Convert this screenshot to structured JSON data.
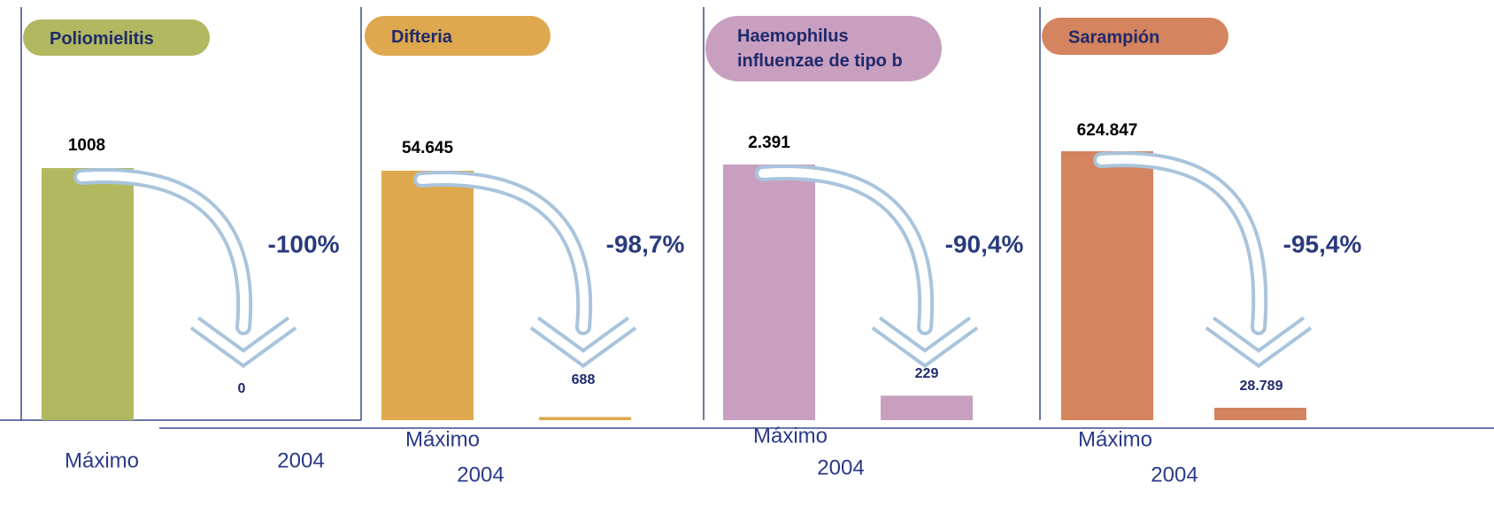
{
  "chart_data": [
    {
      "type": "bar",
      "title": "Poliomielitis",
      "categories": [
        "Máximo",
        "2004"
      ],
      "values": [
        1008,
        0
      ],
      "annotation": "-100%",
      "color": "#b1b860"
    },
    {
      "type": "bar",
      "title": "Difteria",
      "categories": [
        "Máximo",
        "2004"
      ],
      "values": [
        54645,
        688
      ],
      "value_labels": [
        "54.645",
        "688"
      ],
      "annotation": "-98,7%",
      "color": "#dea84e"
    },
    {
      "type": "bar",
      "title": "Haemophilus influenzae de tipo b",
      "categories": [
        "Máximo",
        "2004"
      ],
      "values": [
        2391,
        229
      ],
      "value_labels": [
        "2.391",
        "229"
      ],
      "annotation": "-90,4%",
      "color": "#c99fc0"
    },
    {
      "type": "bar",
      "title": "Sarampión",
      "categories": [
        "Máximo",
        "2004"
      ],
      "values": [
        624847,
        28789
      ],
      "value_labels": [
        "624.847",
        "28.789"
      ],
      "annotation": "-95,4%",
      "color": "#d4845e"
    }
  ]
}
